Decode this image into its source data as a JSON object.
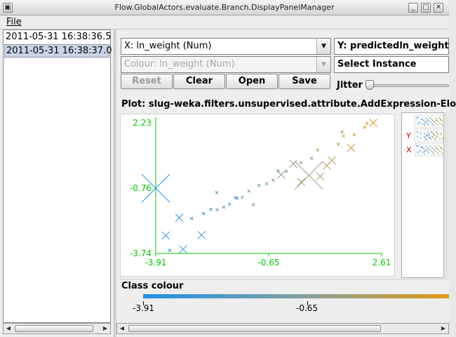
{
  "window": {
    "title": "Flow.GlobalActors.evaluate.Branch.DisplayPanelManager",
    "menu_icon": "window-menu-icon",
    "controls": [
      "minimize-icon",
      "maximize-icon",
      "close-icon"
    ]
  },
  "menubar": {
    "file_label": "File"
  },
  "history": {
    "items": [
      {
        "label": "2011-05-31 16:38:36.5",
        "selected": false
      },
      {
        "label": "2011-05-31 16:38:37.0",
        "selected": true
      }
    ]
  },
  "controls": {
    "x_axis": "X: ln_weight (Num)",
    "y_axis": "Y: predictedln_weight",
    "colour": "Colour: ln_weight (Num)",
    "select_instance": "Select Instance",
    "reset_label": "Reset",
    "clear_label": "Clear",
    "open_label": "Open",
    "save_label": "Save",
    "jitter_label": "Jitter",
    "jitter_value": 0
  },
  "plot": {
    "title": "Plot: slug-weka.filters.unsupervised.attribute.AddExpression-Elo",
    "attr_x_label": "X",
    "attr_y_label": "Y"
  },
  "chart_data": {
    "type": "scatter",
    "xlabel": "",
    "ylabel": "",
    "x_ticks": [
      "-3.91",
      "-0.65",
      "2.61"
    ],
    "y_ticks": [
      "2.23",
      "-0.76",
      "-3.74"
    ],
    "xlim": [
      -3.91,
      2.61
    ],
    "ylim": [
      -3.74,
      2.23
    ],
    "colour_range": [
      -3.91,
      2.61
    ],
    "points": [
      {
        "x": -3.91,
        "y": -0.76,
        "s": 3
      },
      {
        "x": -3.23,
        "y": -2.11,
        "s": 2
      },
      {
        "x": -2.87,
        "y": -2.14,
        "s": 1
      },
      {
        "x": -2.53,
        "y": -1.91,
        "s": 1
      },
      {
        "x": -2.32,
        "y": -1.73,
        "s": 1
      },
      {
        "x": -2.14,
        "y": -1.74,
        "s": 1
      },
      {
        "x": -1.95,
        "y": -1.62,
        "s": 1
      },
      {
        "x": -1.78,
        "y": -1.49,
        "s": 1
      },
      {
        "x": -1.56,
        "y": -1.22,
        "s": 1
      },
      {
        "x": -1.41,
        "y": -1.17,
        "s": 1
      },
      {
        "x": -1.22,
        "y": -0.89,
        "s": 1
      },
      {
        "x": -1.09,
        "y": -1.51,
        "s": 1
      },
      {
        "x": -0.93,
        "y": -0.63,
        "s": 1
      },
      {
        "x": -0.71,
        "y": -0.55,
        "s": 1
      },
      {
        "x": -0.52,
        "y": -0.39,
        "s": 1
      },
      {
        "x": -0.38,
        "y": 0.04,
        "s": 1
      },
      {
        "x": -0.29,
        "y": -0.14,
        "s": 2
      },
      {
        "x": -0.14,
        "y": 0.02,
        "s": 1
      },
      {
        "x": 0.06,
        "y": 0.36,
        "s": 2
      },
      {
        "x": 0.28,
        "y": 0.41,
        "s": 1
      },
      {
        "x": 0.29,
        "y": -0.48,
        "s": 2
      },
      {
        "x": 0.59,
        "y": 0.61,
        "s": 1
      },
      {
        "x": 0.76,
        "y": 0.99,
        "s": 1
      },
      {
        "x": 0.84,
        "y": -0.22,
        "s": 2
      },
      {
        "x": 1.03,
        "y": 0.27,
        "s": 2
      },
      {
        "x": 1.17,
        "y": 0.51,
        "s": 2
      },
      {
        "x": 1.36,
        "y": 1.25,
        "s": 1
      },
      {
        "x": 1.51,
        "y": 1.63,
        "s": 1
      },
      {
        "x": 1.73,
        "y": 1.09,
        "s": 2
      },
      {
        "x": 1.82,
        "y": 1.69,
        "s": 1
      },
      {
        "x": 2.12,
        "y": 2.03,
        "s": 1
      },
      {
        "x": 2.37,
        "y": 2.23,
        "s": 2
      },
      {
        "x": -2.15,
        "y": -0.96,
        "s": 1
      },
      {
        "x": 1.47,
        "y": 1.81,
        "s": 1
      },
      {
        "x": 2.19,
        "y": 2.2,
        "s": 1
      },
      {
        "x": -1.61,
        "y": -1.18,
        "s": 1
      },
      {
        "x": -3.51,
        "y": -3.6,
        "s": 1
      },
      {
        "x": -3.12,
        "y": -3.55,
        "s": 2
      },
      {
        "x": -2.59,
        "y": -2.9,
        "s": 2
      },
      {
        "x": -3.62,
        "y": -2.92,
        "s": 2
      },
      {
        "x": 0.51,
        "y": -0.17,
        "s": 3
      }
    ]
  },
  "legend": {
    "title": "Class colour",
    "ticks": [
      "-3.91",
      "-0.65"
    ]
  }
}
